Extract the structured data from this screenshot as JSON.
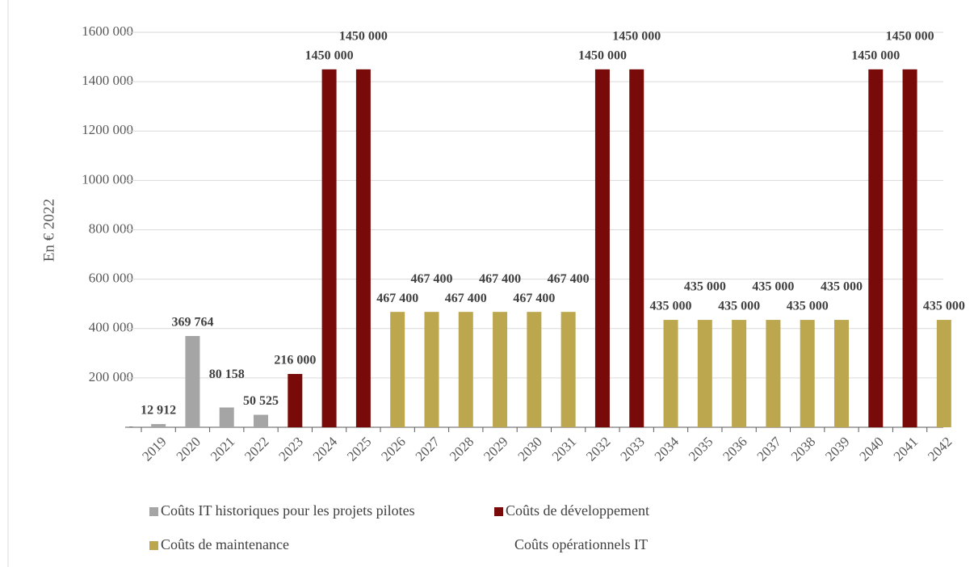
{
  "chart_data": {
    "type": "bar",
    "stacked": true,
    "y_label": "En € 2022",
    "categories": [
      "2019",
      "2020",
      "2021",
      "2022",
      "2023",
      "2024",
      "2025",
      "2026",
      "2027",
      "2028",
      "2029",
      "2030",
      "2031",
      "2032",
      "2033",
      "2034",
      "2035",
      "2036",
      "2037",
      "2038",
      "2039",
      "2040",
      "2041",
      "2042"
    ],
    "ylim": [
      0,
      1600000
    ],
    "yticks": [
      {
        "value": 0,
        "label": "-"
      },
      {
        "value": 200000,
        "label": "200 000"
      },
      {
        "value": 400000,
        "label": "400 000"
      },
      {
        "value": 600000,
        "label": "600 000"
      },
      {
        "value": 800000,
        "label": "800 000"
      },
      {
        "value": 1000000,
        "label": "1000 000"
      },
      {
        "value": 1200000,
        "label": "1200 000"
      },
      {
        "value": 1400000,
        "label": "1400 000"
      },
      {
        "value": 1600000,
        "label": "1600 000"
      }
    ],
    "grid": true,
    "series": [
      {
        "name": "Coûts IT historiques pour les projets pilotes",
        "color": "#a5a5a5",
        "values": [
          12912,
          369764,
          80158,
          50525,
          null,
          null,
          null,
          null,
          null,
          null,
          null,
          null,
          null,
          null,
          null,
          null,
          null,
          null,
          null,
          null,
          null,
          null,
          null,
          null
        ],
        "value_labels": [
          "12 912",
          "369 764",
          "80 158",
          "50 525",
          null,
          null,
          null,
          null,
          null,
          null,
          null,
          null,
          null,
          null,
          null,
          null,
          null,
          null,
          null,
          null,
          null,
          null,
          null,
          null
        ]
      },
      {
        "name": "Coûts de développement",
        "color": "#780a0a",
        "values": [
          null,
          null,
          null,
          null,
          216000,
          1450000,
          1450000,
          null,
          null,
          null,
          null,
          null,
          null,
          1450000,
          1450000,
          null,
          null,
          null,
          null,
          null,
          null,
          1450000,
          1450000,
          null
        ],
        "value_labels": [
          null,
          null,
          null,
          null,
          "216 000",
          "1450 000",
          "1450 000",
          null,
          null,
          null,
          null,
          null,
          null,
          "1450 000",
          "1450 000",
          null,
          null,
          null,
          null,
          null,
          null,
          "1450 000",
          "1450 000",
          null
        ]
      },
      {
        "name": "Coûts de maintenance",
        "color": "#bca74f",
        "values": [
          null,
          null,
          null,
          null,
          null,
          null,
          null,
          467400,
          467400,
          467400,
          467400,
          467400,
          467400,
          null,
          null,
          435000,
          435000,
          435000,
          435000,
          435000,
          435000,
          null,
          null,
          435000
        ],
        "value_labels": [
          null,
          null,
          null,
          null,
          null,
          null,
          null,
          "467 400",
          "467 400",
          "467 400",
          "467 400",
          "467 400",
          "467 400",
          null,
          null,
          "435 000",
          "435 000",
          "435 000",
          "435 000",
          "435 000",
          "435 000",
          null,
          null,
          "435 000"
        ]
      },
      {
        "name": "Coûts opérationnels IT",
        "values": [
          null,
          null,
          null,
          null,
          null,
          null,
          null,
          null,
          null,
          null,
          null,
          null,
          null,
          null,
          null,
          null,
          null,
          null,
          null,
          null,
          null,
          null,
          null,
          null
        ]
      }
    ]
  }
}
